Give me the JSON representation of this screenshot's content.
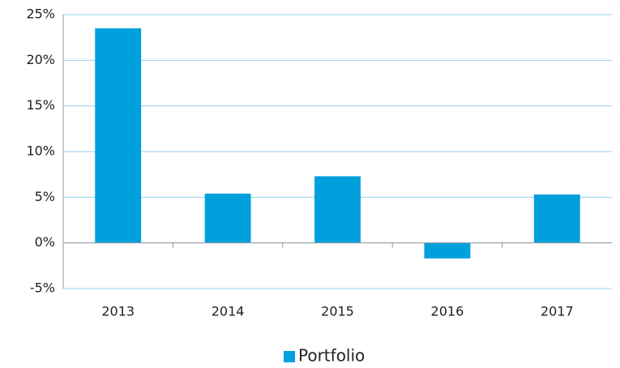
{
  "chart_data": {
    "type": "bar",
    "categories": [
      "2013",
      "2014",
      "2015",
      "2016",
      "2017"
    ],
    "series": [
      {
        "name": "Portfolio",
        "color": "#00a0dd",
        "values": [
          23.5,
          5.4,
          7.3,
          -1.7,
          5.3
        ]
      }
    ],
    "ylim": [
      -5,
      25
    ],
    "yticks": [
      {
        "value": -5,
        "label": "-5%"
      },
      {
        "value": 0,
        "label": "0%"
      },
      {
        "value": 5,
        "label": "5%"
      },
      {
        "value": 10,
        "label": "10%"
      },
      {
        "value": 15,
        "label": "15%"
      },
      {
        "value": 20,
        "label": "20%"
      },
      {
        "value": 25,
        "label": "25%"
      }
    ],
    "grid": true,
    "legend": "bottom"
  }
}
